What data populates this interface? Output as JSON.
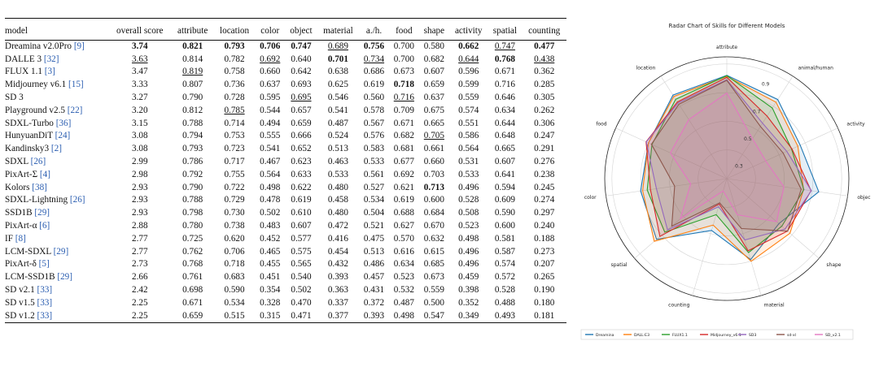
{
  "table": {
    "header": [
      "model",
      "overall score",
      "attribute",
      "location",
      "color",
      "object",
      "material",
      "a./h.",
      "food",
      "shape",
      "activity",
      "spatial",
      "counting"
    ],
    "rows": [
      {
        "name": "Dreamina v2.0Pro ",
        "ref": "[9]",
        "cells": [
          "3.74",
          "0.821",
          "0.793",
          "0.706",
          "0.747",
          "0.689",
          "0.756",
          "0.700",
          "0.580",
          "0.662",
          "0.747",
          "0.477"
        ],
        "bold": [
          0,
          1,
          2,
          3,
          4,
          6,
          9,
          11
        ],
        "underline": [
          5,
          10
        ]
      },
      {
        "name": "DALLE 3 ",
        "ref": "[32]",
        "cells": [
          "3.63",
          "0.814",
          "0.782",
          "0.692",
          "0.640",
          "0.701",
          "0.734",
          "0.700",
          "0.682",
          "0.644",
          "0.768",
          "0.438"
        ],
        "bold": [
          5,
          10
        ],
        "underline": [
          0,
          3,
          6,
          9,
          11
        ]
      },
      {
        "name": "FLUX 1.1 ",
        "ref": "[3]",
        "cells": [
          "3.47",
          "0.819",
          "0.758",
          "0.660",
          "0.642",
          "0.638",
          "0.686",
          "0.673",
          "0.607",
          "0.596",
          "0.671",
          "0.362"
        ],
        "bold": [],
        "underline": [
          1
        ]
      },
      {
        "name": "Midjourney v6.1 ",
        "ref": "[15]",
        "cells": [
          "3.33",
          "0.807",
          "0.736",
          "0.637",
          "0.693",
          "0.625",
          "0.619",
          "0.718",
          "0.659",
          "0.599",
          "0.716",
          "0.285"
        ],
        "bold": [
          7
        ],
        "underline": []
      },
      {
        "name": "SD 3",
        "ref": "",
        "cells": [
          "3.27",
          "0.790",
          "0.728",
          "0.595",
          "0.695",
          "0.546",
          "0.560",
          "0.716",
          "0.637",
          "0.559",
          "0.646",
          "0.305"
        ],
        "bold": [],
        "underline": [
          4,
          7
        ]
      },
      {
        "name": "Playground v2.5 ",
        "ref": "[22]",
        "cells": [
          "3.20",
          "0.812",
          "0.785",
          "0.544",
          "0.657",
          "0.541",
          "0.578",
          "0.709",
          "0.675",
          "0.574",
          "0.634",
          "0.262"
        ],
        "bold": [],
        "underline": [
          2
        ]
      },
      {
        "name": "SDXL-Turbo ",
        "ref": "[36]",
        "cells": [
          "3.15",
          "0.788",
          "0.714",
          "0.494",
          "0.659",
          "0.487",
          "0.567",
          "0.671",
          "0.665",
          "0.551",
          "0.644",
          "0.306"
        ],
        "bold": [],
        "underline": []
      },
      {
        "name": "HunyuanDiT ",
        "ref": "[24]",
        "cells": [
          "3.08",
          "0.794",
          "0.753",
          "0.555",
          "0.666",
          "0.524",
          "0.576",
          "0.682",
          "0.705",
          "0.586",
          "0.648",
          "0.247"
        ],
        "bold": [],
        "underline": [
          8
        ]
      },
      {
        "name": "Kandinsky3 ",
        "ref": "[2]",
        "cells": [
          "3.08",
          "0.793",
          "0.723",
          "0.541",
          "0.652",
          "0.513",
          "0.583",
          "0.681",
          "0.661",
          "0.564",
          "0.665",
          "0.291"
        ],
        "bold": [],
        "underline": []
      },
      {
        "name": "SDXL ",
        "ref": "[26]",
        "cells": [
          "2.99",
          "0.786",
          "0.717",
          "0.467",
          "0.623",
          "0.463",
          "0.533",
          "0.677",
          "0.660",
          "0.531",
          "0.607",
          "0.276"
        ],
        "bold": [],
        "underline": []
      },
      {
        "name": "PixArt-Σ ",
        "ref": "[4]",
        "cells": [
          "2.98",
          "0.792",
          "0.755",
          "0.564",
          "0.633",
          "0.533",
          "0.561",
          "0.692",
          "0.703",
          "0.533",
          "0.641",
          "0.238"
        ],
        "bold": [],
        "underline": []
      },
      {
        "name": "Kolors ",
        "ref": "[38]",
        "cells": [
          "2.93",
          "0.790",
          "0.722",
          "0.498",
          "0.622",
          "0.480",
          "0.527",
          "0.621",
          "0.713",
          "0.496",
          "0.594",
          "0.245"
        ],
        "bold": [
          8
        ],
        "underline": []
      },
      {
        "name": "SDXL-Lightning ",
        "ref": "[26]",
        "cells": [
          "2.93",
          "0.788",
          "0.729",
          "0.478",
          "0.619",
          "0.458",
          "0.534",
          "0.619",
          "0.600",
          "0.528",
          "0.609",
          "0.274"
        ],
        "bold": [],
        "underline": []
      },
      {
        "name": "SSD1B ",
        "ref": "[29]",
        "cells": [
          "2.93",
          "0.798",
          "0.730",
          "0.502",
          "0.610",
          "0.480",
          "0.504",
          "0.688",
          "0.684",
          "0.508",
          "0.590",
          "0.297"
        ],
        "bold": [],
        "underline": []
      },
      {
        "name": "PixArt-α ",
        "ref": "[6]",
        "cells": [
          "2.88",
          "0.780",
          "0.738",
          "0.483",
          "0.607",
          "0.472",
          "0.521",
          "0.627",
          "0.670",
          "0.523",
          "0.600",
          "0.240"
        ],
        "bold": [],
        "underline": []
      },
      {
        "name": "IF ",
        "ref": "[8]",
        "cells": [
          "2.77",
          "0.725",
          "0.620",
          "0.452",
          "0.577",
          "0.416",
          "0.475",
          "0.570",
          "0.632",
          "0.498",
          "0.581",
          "0.188"
        ],
        "bold": [],
        "underline": []
      },
      {
        "name": "LCM-SDXL ",
        "ref": "[29]",
        "cells": [
          "2.77",
          "0.762",
          "0.706",
          "0.465",
          "0.575",
          "0.454",
          "0.513",
          "0.616",
          "0.615",
          "0.496",
          "0.587",
          "0.273"
        ],
        "bold": [],
        "underline": []
      },
      {
        "name": "PixArt-δ ",
        "ref": "[5]",
        "cells": [
          "2.73",
          "0.768",
          "0.718",
          "0.455",
          "0.565",
          "0.432",
          "0.486",
          "0.634",
          "0.685",
          "0.496",
          "0.574",
          "0.207"
        ],
        "bold": [],
        "underline": []
      },
      {
        "name": "LCM-SSD1B ",
        "ref": "[29]",
        "cells": [
          "2.66",
          "0.761",
          "0.683",
          "0.451",
          "0.540",
          "0.393",
          "0.457",
          "0.523",
          "0.673",
          "0.459",
          "0.572",
          "0.265"
        ],
        "bold": [],
        "underline": []
      },
      {
        "name": "SD v2.1 ",
        "ref": "[33]",
        "cells": [
          "2.42",
          "0.698",
          "0.590",
          "0.354",
          "0.502",
          "0.363",
          "0.431",
          "0.532",
          "0.559",
          "0.398",
          "0.528",
          "0.190"
        ],
        "bold": [],
        "underline": []
      },
      {
        "name": "SD v1.5 ",
        "ref": "[33]",
        "cells": [
          "2.25",
          "0.671",
          "0.534",
          "0.328",
          "0.470",
          "0.337",
          "0.372",
          "0.487",
          "0.500",
          "0.352",
          "0.488",
          "0.180"
        ],
        "bold": [],
        "underline": []
      },
      {
        "name": "SD v1.2 ",
        "ref": "[33]",
        "cells": [
          "2.25",
          "0.659",
          "0.515",
          "0.315",
          "0.471",
          "0.377",
          "0.393",
          "0.498",
          "0.547",
          "0.349",
          "0.493",
          "0.181"
        ],
        "bold": [],
        "underline": []
      }
    ]
  },
  "chart_data": {
    "type": "radar",
    "title": "Radar Chart of Skills for Different Models",
    "axes": [
      "attribute",
      "animal/human",
      "activity",
      "object",
      "shape",
      "material",
      "counting",
      "spatial",
      "color",
      "food",
      "location"
    ],
    "axis_display": [
      "attribute",
      "animal/human",
      "activity",
      "objec",
      "shape",
      "material",
      "counting",
      "spatial",
      "color",
      "food",
      "location"
    ],
    "radial_range": [
      0.1,
      0.95
    ],
    "radial_ticks": [
      "0.3",
      "0.5",
      "0.7",
      "0.9"
    ],
    "radial_tick_values": [
      0.3,
      0.5,
      0.7,
      0.9
    ],
    "series": [
      {
        "name": "Dreamina",
        "color": "#1f77b4",
        "values": [
          0.821,
          0.756,
          0.662,
          0.747,
          0.58,
          0.689,
          0.477,
          0.747,
          0.706,
          0.7,
          0.793
        ]
      },
      {
        "name": "DALL·E3",
        "color": "#ff7f0e",
        "values": [
          0.814,
          0.734,
          0.644,
          0.64,
          0.682,
          0.701,
          0.438,
          0.768,
          0.692,
          0.7,
          0.782
        ]
      },
      {
        "name": "FLUX1.1",
        "color": "#2ca02c",
        "values": [
          0.819,
          0.686,
          0.596,
          0.642,
          0.607,
          0.638,
          0.362,
          0.671,
          0.66,
          0.673,
          0.758
        ]
      },
      {
        "name": "Midjourney_v6.1",
        "color": "#d62728",
        "values": [
          0.807,
          0.619,
          0.599,
          0.693,
          0.659,
          0.625,
          0.285,
          0.716,
          0.637,
          0.718,
          0.736
        ]
      },
      {
        "name": "SD3",
        "color": "#9467bd",
        "values": [
          0.79,
          0.56,
          0.559,
          0.695,
          0.637,
          0.546,
          0.305,
          0.646,
          0.595,
          0.716,
          0.728
        ]
      },
      {
        "name": "sd-xl",
        "color": "#8c564b",
        "values": [
          0.786,
          0.533,
          0.531,
          0.623,
          0.66,
          0.463,
          0.276,
          0.607,
          0.467,
          0.677,
          0.717
        ]
      },
      {
        "name": "SD_v2.1",
        "color": "#e377c2",
        "values": [
          0.698,
          0.431,
          0.398,
          0.502,
          0.559,
          0.363,
          0.19,
          0.528,
          0.354,
          0.532,
          0.59
        ]
      }
    ]
  }
}
